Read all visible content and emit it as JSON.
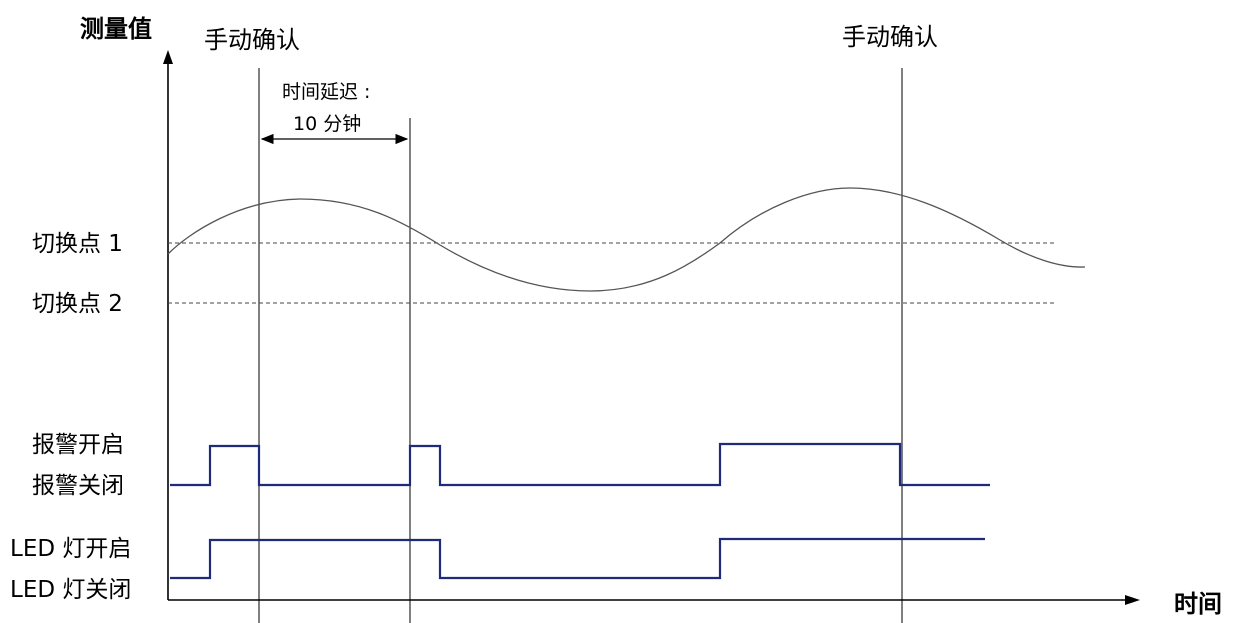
{
  "axes": {
    "y_label": "测量值",
    "x_label": "时间"
  },
  "annotations": {
    "manual_ack_1": "手动确认",
    "manual_ack_2": "手动确认",
    "delay_line1": "时间延迟 :",
    "delay_line2": "10  分钟"
  },
  "levels": {
    "switch_point_1": "切换点 1",
    "switch_point_2": "切换点 2",
    "alarm_on": "报警开启",
    "alarm_off": "报警关闭",
    "led_on": "LED 灯开启",
    "led_off": "LED 灯关闭"
  },
  "colors": {
    "axis": "#000000",
    "curve": "#555555",
    "signal": "#1f2a7a",
    "threshold": "#444444"
  }
}
